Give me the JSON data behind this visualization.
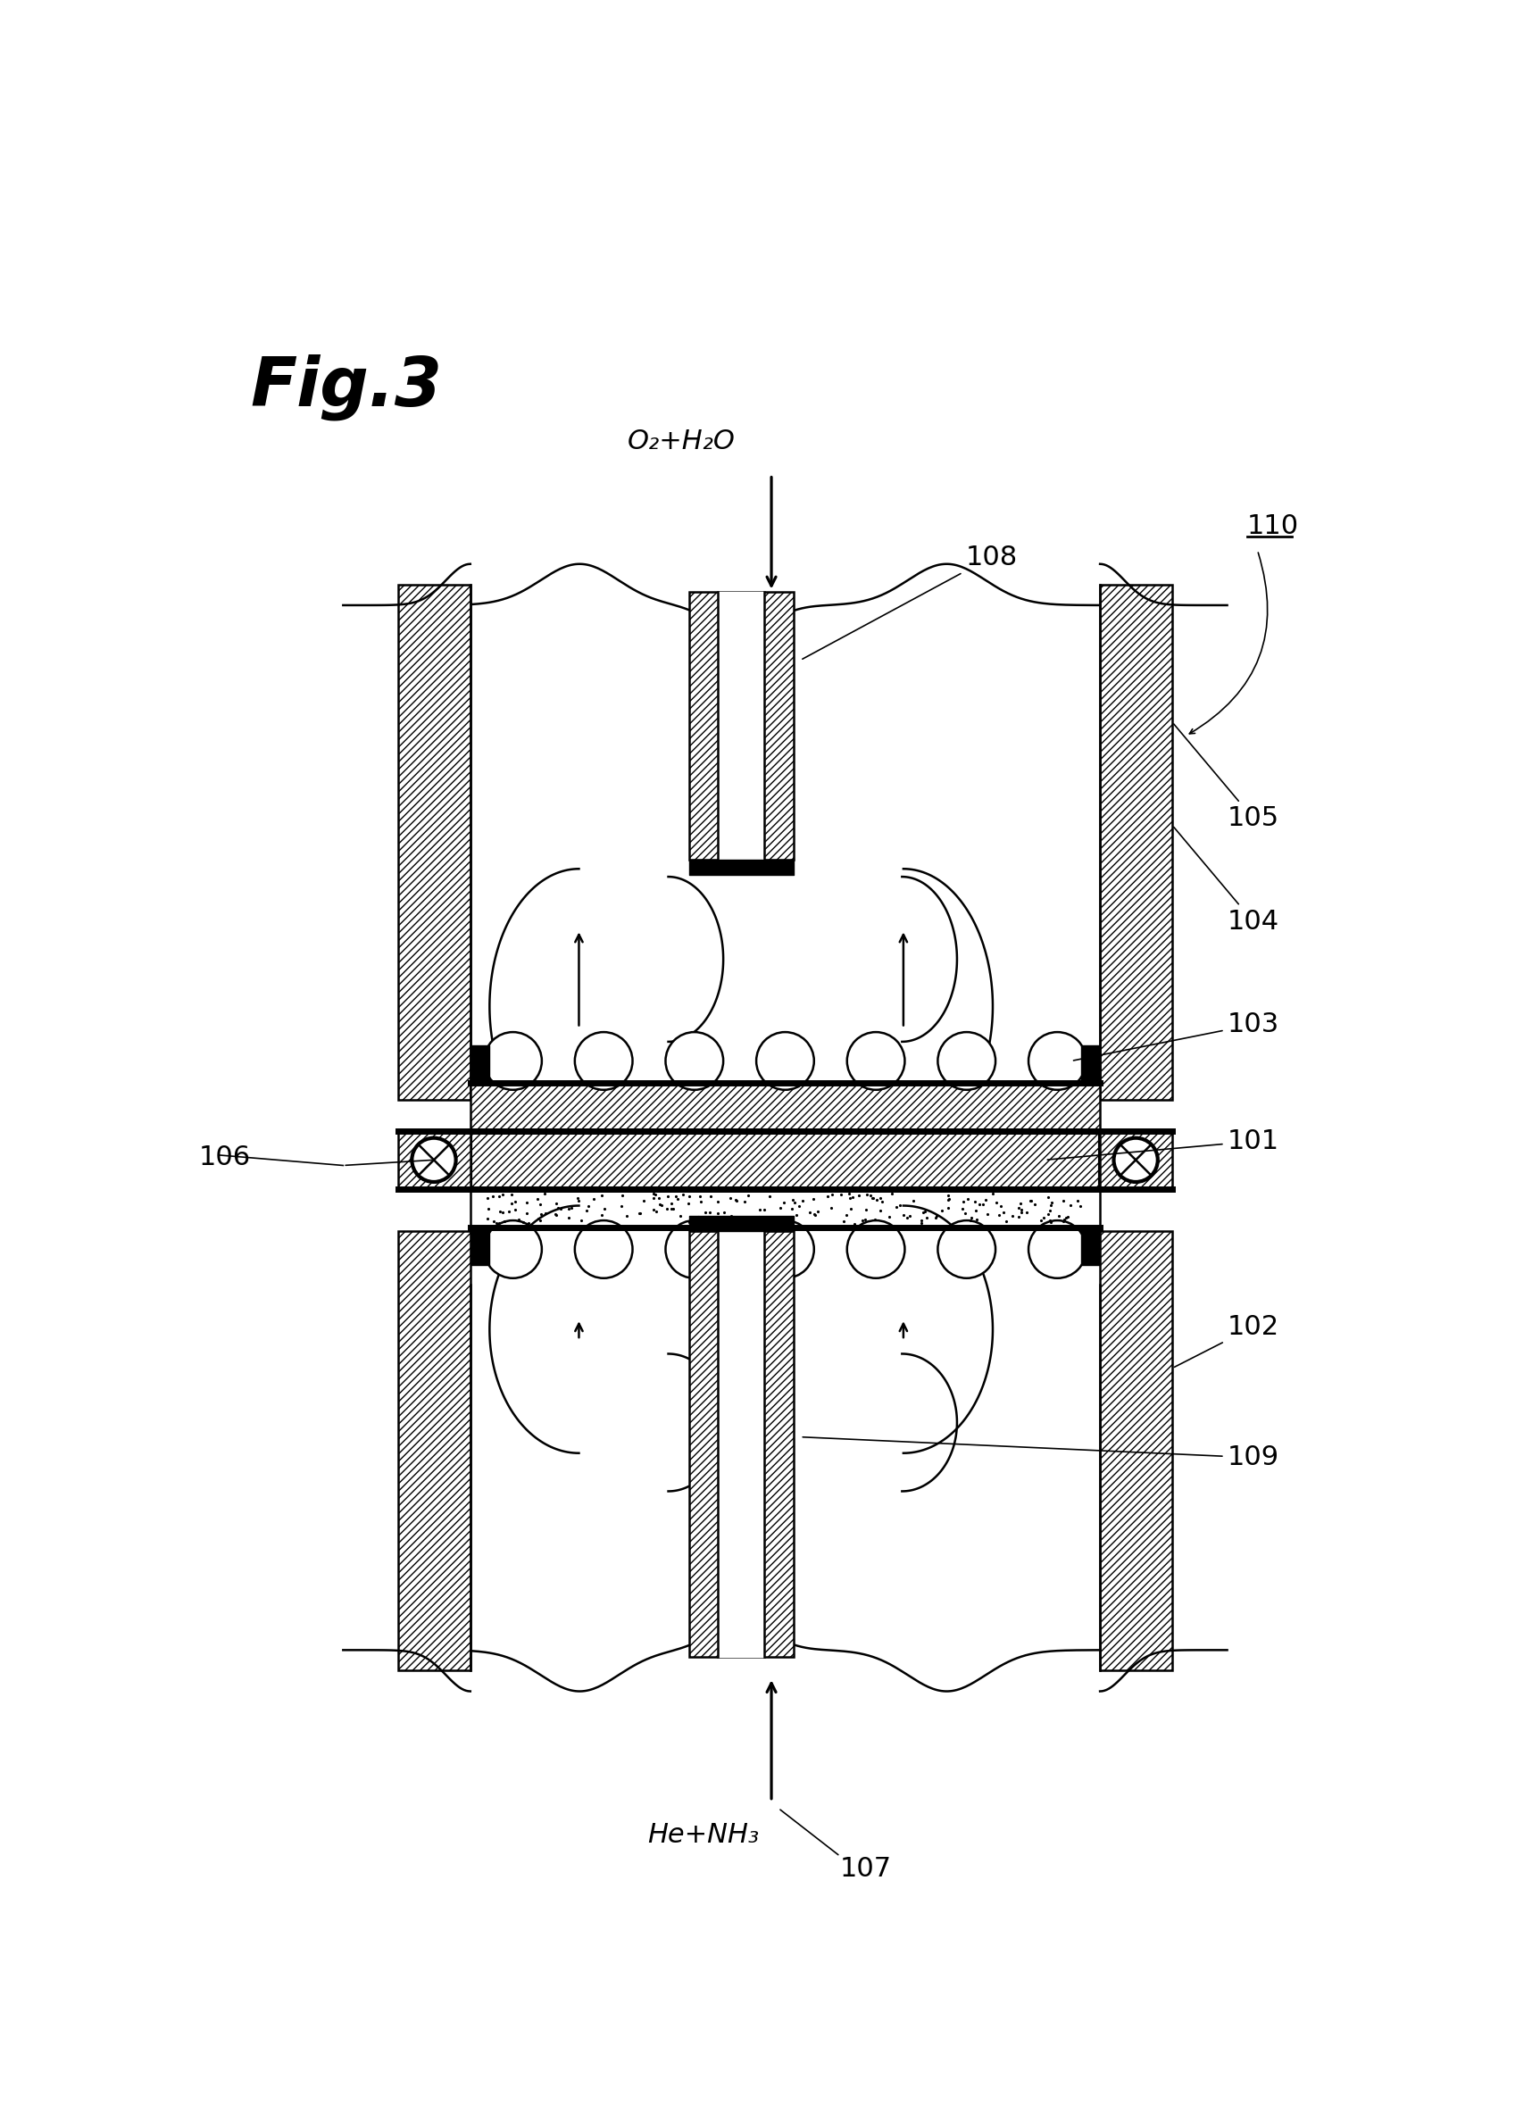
{
  "background_color": "#ffffff",
  "fig_width": 17.16,
  "fig_height": 23.77,
  "labels": {
    "fig_label": "Fig.3",
    "gas_top": "O₂+H₂O",
    "gas_bottom": "He+NH₃",
    "num_108": "108",
    "num_110": "110",
    "num_105": "105",
    "num_104": "104",
    "num_103": "103",
    "num_101": "101",
    "num_106": "106",
    "num_102": "102",
    "num_109": "109",
    "num_107": "107"
  }
}
